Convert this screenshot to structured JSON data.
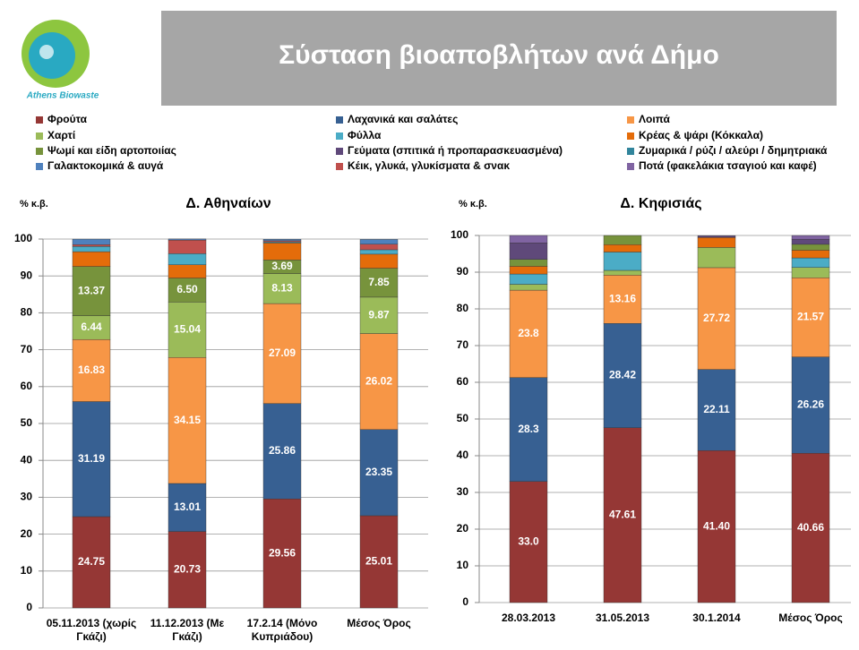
{
  "title": "Σύσταση βιοαποβλήτων ανά Δήμο",
  "logo": "Athens Biowaste",
  "legend": [
    {
      "name": "Φρούτα",
      "color": "#953735"
    },
    {
      "name": "Χαρτί",
      "color": "#9bbb59"
    },
    {
      "name": "Ψωμί και είδη αρτοποιίας",
      "color": "#77933c"
    },
    {
      "name": "Γαλακτοκομικά & αυγά",
      "color": "#4f81bd"
    },
    {
      "name": "Λαχανικά και σαλάτες",
      "color": "#376092"
    },
    {
      "name": "Φύλλα",
      "color": "#4bacc6"
    },
    {
      "name": "Γεύματα (σπιτικά ή προπαρασκευασμένα)",
      "color": "#5f497a"
    },
    {
      "name": "Κέικ, γλυκά, γλυκίσματα & σνακ",
      "color": "#c0504d"
    },
    {
      "name": "Λοιπά",
      "color": "#f79646"
    },
    {
      "name": "Κρέας & ψάρι (Κόκκαλα)",
      "color": "#e46c0a"
    },
    {
      "name": "Ζυμαρικά / ρύζι / αλεύρι / δημητριακά",
      "color": "#31859c"
    },
    {
      "name": "Ποτά (φακελάκια τσαγιού και καφέ)",
      "color": "#8064a2"
    }
  ],
  "chart_data": [
    {
      "type": "stacked_bar",
      "title": "Δ. Αθηναίων",
      "y_label": "% κ.β.",
      "categories": [
        "05.11.2013 (χωρίς Γκάζι)",
        "11.12.2013 (Με Γκάζι)",
        "17.2.14 (Μόνο Κυπριάδου)",
        "Μέσος Όρος"
      ],
      "ylim": [
        0,
        100
      ],
      "yticks": [
        0,
        10,
        20,
        30,
        40,
        50,
        60,
        70,
        80,
        90,
        100
      ],
      "grid": true,
      "series": [
        {
          "name": "Φρούτα",
          "color": "#953735",
          "values": [
            24.75,
            20.73,
            29.56,
            25.01
          ],
          "value_labels": [
            "24.75",
            "20.73",
            "29.56",
            "25.01"
          ]
        },
        {
          "name": "Λαχανικά και σαλάτες",
          "color": "#376092",
          "values": [
            31.19,
            13.01,
            25.86,
            23.35
          ],
          "value_labels": [
            "31.19",
            "13.01",
            "25.86",
            "23.35"
          ]
        },
        {
          "name": "Λοιπά",
          "color": "#f79646",
          "values": [
            16.83,
            34.15,
            27.09,
            26.02
          ],
          "value_labels": [
            "16.83",
            "34.15",
            "27.09",
            "26.02"
          ]
        },
        {
          "name": "Χαρτί",
          "color": "#9bbb59",
          "values": [
            6.44,
            15.04,
            8.13,
            9.87
          ],
          "value_labels": [
            "6.44",
            "15.04",
            "8.13",
            "9.87"
          ]
        },
        {
          "name": "Ψωμί και είδη αρτοποιίας",
          "color": "#77933c",
          "values": [
            13.37,
            6.5,
            3.69,
            7.85
          ],
          "value_labels": [
            "13.37",
            "6.50",
            "3.69",
            "7.85"
          ]
        },
        {
          "name": "Κρέας & ψάρι (Κόκκαλα)",
          "color": "#e46c0a",
          "values": [
            4.0,
            3.6,
            4.6,
            3.8
          ]
        },
        {
          "name": "Φύλλα",
          "color": "#4bacc6",
          "values": [
            1.4,
            3.0,
            0.3,
            1.2
          ]
        },
        {
          "name": "Κέικ, γλυκά, γλυκίσματα & σνακ",
          "color": "#c0504d",
          "values": [
            0.5,
            3.7,
            0.3,
            1.5
          ]
        },
        {
          "name": "Γαλακτοκομικά & αυγά",
          "color": "#4f81bd",
          "values": [
            1.5,
            0.3,
            0.4,
            1.3
          ]
        }
      ]
    },
    {
      "type": "stacked_bar",
      "title": "Δ. Κηφισιάς",
      "y_label": "% κ.β.",
      "categories": [
        "28.03.2013",
        "31.05.2013",
        "30.1.2014",
        "Μέσος Όρος"
      ],
      "ylim": [
        0,
        100
      ],
      "yticks": [
        0,
        10,
        20,
        30,
        40,
        50,
        60,
        70,
        80,
        90,
        100
      ],
      "grid": true,
      "series": [
        {
          "name": "Φρούτα",
          "color": "#953735",
          "values": [
            33.0,
            47.61,
            41.4,
            40.66
          ],
          "value_labels": [
            "33.0",
            "47.61",
            "41.40",
            "40.66"
          ]
        },
        {
          "name": "Λαχανικά και σαλάτες",
          "color": "#376092",
          "values": [
            28.3,
            28.42,
            22.11,
            26.26
          ],
          "value_labels": [
            "28.3",
            "28.42",
            "22.11",
            "26.26"
          ]
        },
        {
          "name": "Λοιπά",
          "color": "#f79646",
          "values": [
            23.8,
            13.16,
            27.72,
            21.57
          ],
          "value_labels": [
            "23.8",
            "13.16",
            "27.72",
            "21.57"
          ]
        },
        {
          "name": "Χαρτί",
          "color": "#9bbb59",
          "values": [
            1.6,
            1.3,
            5.5,
            2.8
          ]
        },
        {
          "name": "Φύλλα",
          "color": "#4bacc6",
          "values": [
            2.8,
            5.0,
            0,
            2.6
          ]
        },
        {
          "name": "Κρέας & ψάρι (Κόκκαλα)",
          "color": "#e46c0a",
          "values": [
            2.1,
            2.0,
            2.7,
            2.1
          ]
        },
        {
          "name": "Ψωμί και είδη αρτοποιίας",
          "color": "#77933c",
          "values": [
            1.9,
            2.5,
            0,
            1.6
          ]
        },
        {
          "name": "Γεύματα (σπιτικά ή προπαρασκευασμένα)",
          "color": "#5f497a",
          "values": [
            4.5,
            0,
            0.5,
            1.4
          ]
        },
        {
          "name": "Ποτά (φακελάκια τσαγιού και καφέ)",
          "color": "#8064a2",
          "values": [
            2.0,
            0,
            0,
            1.0
          ]
        }
      ]
    }
  ]
}
